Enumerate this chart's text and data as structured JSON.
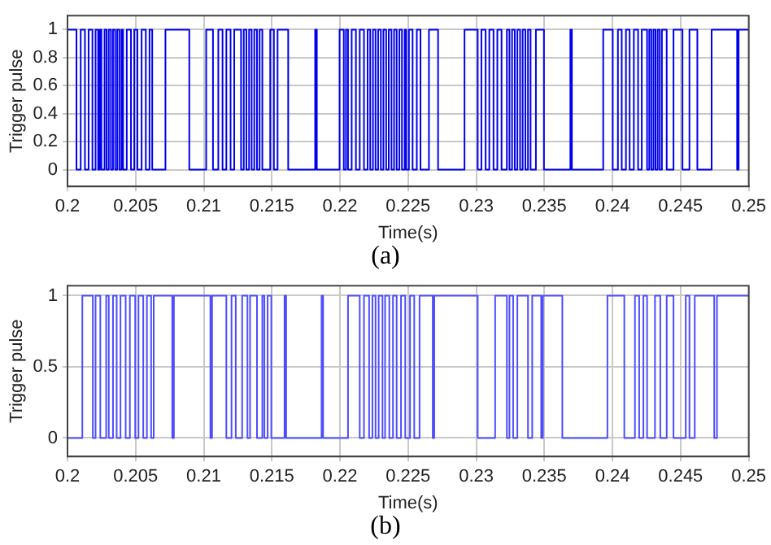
{
  "chart_data": [
    {
      "type": "step",
      "xlabel": "Time(s)",
      "ylabel": "Trigger pulse",
      "annotations": [
        "(a)"
      ],
      "color": "#0000ee",
      "grid": true,
      "xlim": [
        0.2,
        0.25
      ],
      "ylim": [
        -0.12,
        1.1
      ],
      "xticks": [
        0.2,
        0.205,
        0.21,
        0.215,
        0.22,
        0.225,
        0.23,
        0.235,
        0.24,
        0.245,
        0.25
      ],
      "yticks": [
        0,
        0.2,
        0.4,
        0.6,
        0.8,
        1
      ],
      "x": [
        0.2,
        0.20066,
        0.20097,
        0.20128,
        0.20155,
        0.20183,
        0.20206,
        0.20225,
        0.20237,
        0.20249,
        0.20272,
        0.20287,
        0.20303,
        0.20319,
        0.20334,
        0.2035,
        0.20365,
        0.20381,
        0.20396,
        0.20408,
        0.20435,
        0.20466,
        0.2049,
        0.20513,
        0.20544,
        0.20575,
        0.20602,
        0.20622,
        0.20719,
        0.20894,
        0.21018,
        0.21068,
        0.21107,
        0.21138,
        0.21166,
        0.21197,
        0.21224,
        0.21274,
        0.21294,
        0.21313,
        0.21333,
        0.21352,
        0.21371,
        0.21391,
        0.2141,
        0.2143,
        0.21488,
        0.21515,
        0.21542,
        0.2162,
        0.21818,
        0.2183,
        0.21997,
        0.22028,
        0.22044,
        0.22059,
        0.22086,
        0.22117,
        0.22145,
        0.22176,
        0.22203,
        0.22222,
        0.22242,
        0.22261,
        0.2228,
        0.223,
        0.22319,
        0.22339,
        0.22358,
        0.22378,
        0.22397,
        0.22416,
        0.22436,
        0.22455,
        0.22475,
        0.22486,
        0.22506,
        0.22533,
        0.22564,
        0.22591,
        0.22653,
        0.2272,
        0.22914,
        0.23011,
        0.23038,
        0.23069,
        0.23096,
        0.23127,
        0.23155,
        0.23186,
        0.23225,
        0.23244,
        0.23263,
        0.23283,
        0.23302,
        0.23322,
        0.23341,
        0.23361,
        0.2338,
        0.23399,
        0.23438,
        0.23497,
        0.23691,
        0.23702,
        0.23932,
        0.24002,
        0.2404,
        0.24068,
        0.24099,
        0.24126,
        0.24157,
        0.24188,
        0.24215,
        0.24254,
        0.2427,
        0.24285,
        0.24301,
        0.24316,
        0.24332,
        0.24347,
        0.24363,
        0.24398,
        0.24448,
        0.24514,
        0.24565,
        0.24623,
        0.24728,
        0.24915,
        0.24926,
        0.25
      ],
      "values": [
        1,
        0,
        1,
        0,
        1,
        0,
        1,
        0,
        1,
        0,
        1,
        0,
        1,
        0,
        1,
        0,
        1,
        0,
        1,
        0,
        1,
        0,
        1,
        0,
        1,
        0,
        1,
        0,
        1,
        0,
        1,
        0,
        1,
        0,
        1,
        0,
        1,
        0,
        1,
        0,
        1,
        0,
        1,
        0,
        1,
        0,
        1,
        0,
        1,
        0,
        1,
        0,
        1,
        0,
        1,
        0,
        1,
        0,
        1,
        0,
        1,
        0,
        1,
        0,
        1,
        0,
        1,
        0,
        1,
        0,
        1,
        0,
        1,
        0,
        1,
        0,
        1,
        0,
        1,
        0,
        1,
        0,
        1,
        0,
        1,
        0,
        1,
        0,
        1,
        0,
        1,
        0,
        1,
        0,
        1,
        0,
        1,
        0,
        1,
        0,
        1,
        0,
        1,
        0,
        1,
        0,
        1,
        0,
        1,
        0,
        1,
        0,
        1,
        0,
        1,
        0,
        1,
        0,
        1,
        0,
        1,
        0,
        1,
        0,
        1,
        0,
        1,
        0,
        1,
        1
      ]
    },
    {
      "type": "step",
      "xlabel": "Time(s)",
      "ylabel": "Trigger pulse",
      "annotations": [
        "(b)"
      ],
      "color": "#4d4dff",
      "grid": true,
      "xlim": [
        0.2,
        0.25
      ],
      "ylim": [
        -0.13,
        1.07
      ],
      "xticks": [
        0.2,
        0.205,
        0.21,
        0.215,
        0.22,
        0.225,
        0.23,
        0.235,
        0.24,
        0.245,
        0.25
      ],
      "yticks": [
        0,
        0.5,
        1
      ],
      "x": [
        0.2,
        0.20109,
        0.20186,
        0.20206,
        0.20241,
        0.20284,
        0.20303,
        0.20334,
        0.20361,
        0.20389,
        0.20427,
        0.20458,
        0.20497,
        0.20521,
        0.20556,
        0.20583,
        0.20614,
        0.20633,
        0.20769,
        0.20781,
        0.21049,
        0.21061,
        0.21166,
        0.21204,
        0.21235,
        0.21282,
        0.21321,
        0.2134,
        0.21391,
        0.2143,
        0.21445,
        0.21469,
        0.21496,
        0.21593,
        0.21605,
        0.21865,
        0.21876,
        0.22059,
        0.22145,
        0.22176,
        0.22214,
        0.22238,
        0.22261,
        0.22284,
        0.22312,
        0.22331,
        0.22362,
        0.22389,
        0.22416,
        0.22448,
        0.22479,
        0.22514,
        0.22545,
        0.22584,
        0.22681,
        0.22692,
        0.23011,
        0.23139,
        0.23225,
        0.23244,
        0.23271,
        0.23302,
        0.2338,
        0.23411,
        0.23477,
        0.23489,
        0.23632,
        0.23963,
        0.24087,
        0.24165,
        0.24196,
        0.24227,
        0.24254,
        0.24312,
        0.24351,
        0.24398,
        0.24448,
        0.24538,
        0.24565,
        0.24604,
        0.24747,
        0.24767,
        0.25
      ],
      "values": [
        0,
        1,
        0,
        1,
        0,
        1,
        0,
        1,
        0,
        1,
        0,
        1,
        0,
        1,
        0,
        1,
        0,
        1,
        0,
        1,
        0,
        1,
        0,
        1,
        0,
        1,
        0,
        1,
        0,
        1,
        0,
        1,
        0,
        1,
        0,
        1,
        0,
        1,
        0,
        1,
        0,
        1,
        0,
        1,
        0,
        1,
        0,
        1,
        0,
        1,
        0,
        1,
        0,
        1,
        0,
        1,
        0,
        1,
        0,
        1,
        0,
        1,
        0,
        1,
        0,
        1,
        0,
        1,
        0,
        1,
        0,
        1,
        0,
        1,
        0,
        1,
        0,
        1,
        0,
        1,
        0,
        1,
        1
      ]
    }
  ]
}
